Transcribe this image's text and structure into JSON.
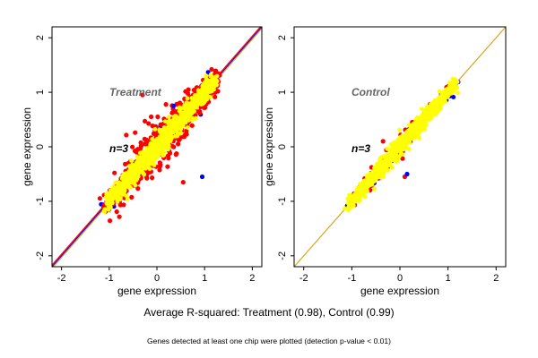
{
  "chart_data": [
    {
      "type": "scatter",
      "title": "",
      "annotation": "Treatment",
      "n_label": "n=3",
      "xlabel": "gene expression",
      "ylabel": "gene expression",
      "xlim": [
        -2.2,
        2.2
      ],
      "ylim": [
        -2.2,
        2.2
      ],
      "xticks": [
        -2,
        -1,
        0,
        1,
        2
      ],
      "yticks": [
        -2,
        -1,
        0,
        1,
        2
      ],
      "grid": false,
      "point_cloud": {
        "x_range": [
          -1.1,
          1.25
        ],
        "colors": {
          "red": "#ff0000",
          "blue": "#0000ff",
          "yellow": "#ffff00"
        },
        "red_spread": 0.14,
        "yellow_spread": 0.07,
        "notable_outliers": [
          [
            0.55,
            -0.65
          ],
          [
            0.95,
            -0.55
          ],
          [
            -0.3,
            0.95
          ],
          [
            0.35,
            0.75
          ]
        ]
      },
      "reference_lines": [
        {
          "color": "#0000ff",
          "slope": 1.0,
          "intercept": 0.0
        },
        {
          "color": "#ff0000",
          "slope": 1.0,
          "intercept": 0.03
        },
        {
          "color": "#daa520",
          "slope": 1.0,
          "intercept": -0.03
        }
      ]
    },
    {
      "type": "scatter",
      "title": "",
      "annotation": "Control",
      "n_label": "n=3",
      "xlabel": "gene expression",
      "ylabel": "gene expression",
      "xlim": [
        -2.2,
        2.2
      ],
      "ylim": [
        -2.2,
        2.2
      ],
      "xticks": [
        -2,
        -1,
        0,
        1,
        2
      ],
      "yticks": [
        -2,
        -1,
        0,
        1,
        2
      ],
      "grid": false,
      "point_cloud": {
        "x_range": [
          -1.1,
          1.2
        ],
        "colors": {
          "red": "#ff0000",
          "blue": "#0000ff",
          "yellow": "#ffff00"
        },
        "red_spread": 0.07,
        "yellow_spread": 0.05,
        "notable_outliers": [
          [
            0.1,
            -0.55
          ],
          [
            0.15,
            -0.5
          ],
          [
            -0.35,
            0.1
          ]
        ]
      },
      "reference_lines": [
        {
          "color": "#daa520",
          "slope": 1.0,
          "intercept": 0.0
        }
      ]
    }
  ],
  "caption": "Average R-squared: Treatment (0.98), Control (0.99)",
  "footnote": "Genes detected at least one chip were plotted (detection p-value < 0.01)"
}
